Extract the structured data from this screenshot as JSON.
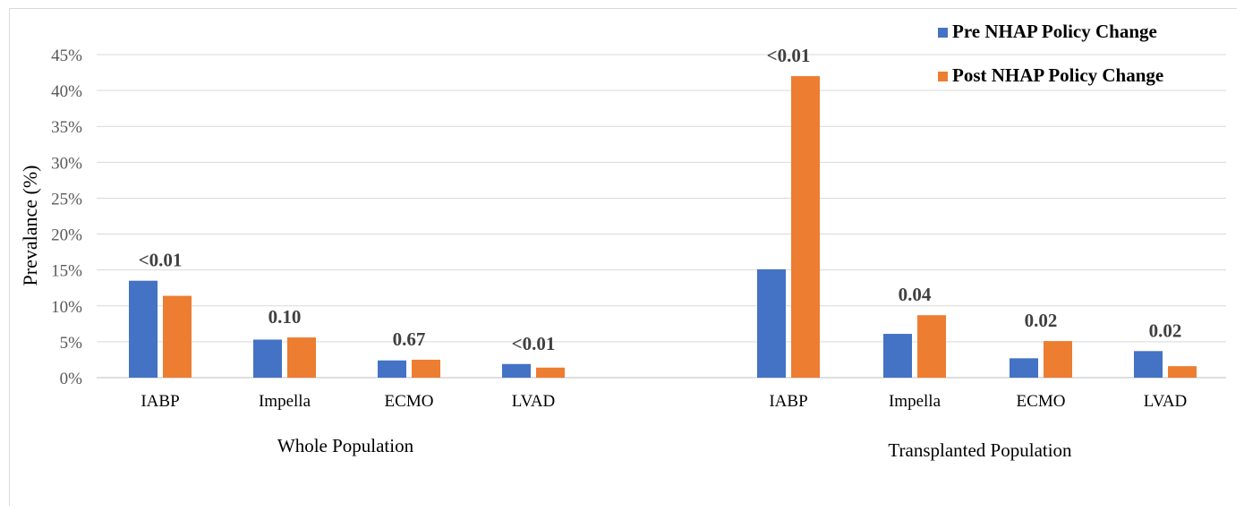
{
  "chart_data": {
    "type": "bar",
    "ylabel": "Prevalance (%)",
    "ylim": [
      0,
      45
    ],
    "yticks": [
      "0%",
      "5%",
      "10%",
      "15%",
      "20%",
      "25%",
      "30%",
      "35%",
      "40%",
      "45%"
    ],
    "grid": true,
    "legend_position": "top-right",
    "colors": [
      "#4472c4",
      "#ed7d31"
    ],
    "groups": [
      {
        "label": "Whole Population",
        "categories": [
          "IABP",
          "Impella",
          "ECMO",
          "LVAD"
        ],
        "series": [
          {
            "name": "Pre NHAP Policy Change",
            "values": [
              13.5,
              5.3,
              2.4,
              1.9
            ]
          },
          {
            "name": "Post NHAP Policy Change",
            "values": [
              11.4,
              5.6,
              2.5,
              1.4
            ]
          }
        ],
        "p_values": [
          "<0.01",
          "0.10",
          "0.67",
          "<0.01"
        ]
      },
      {
        "label": "Transplanted Population",
        "categories": [
          "IABP",
          "Impella",
          "ECMO",
          "LVAD"
        ],
        "series": [
          {
            "name": "Pre NHAP Policy Change",
            "values": [
              15.1,
              6.1,
              2.7,
              3.7
            ]
          },
          {
            "name": "Post NHAP Policy Change",
            "values": [
              42.0,
              8.7,
              5.1,
              1.6
            ]
          }
        ],
        "p_values": [
          "<0.01",
          "0.04",
          "0.02",
          "0.02"
        ]
      }
    ],
    "legend": [
      "Pre NHAP Policy Change",
      "Post NHAP Policy Change"
    ]
  }
}
